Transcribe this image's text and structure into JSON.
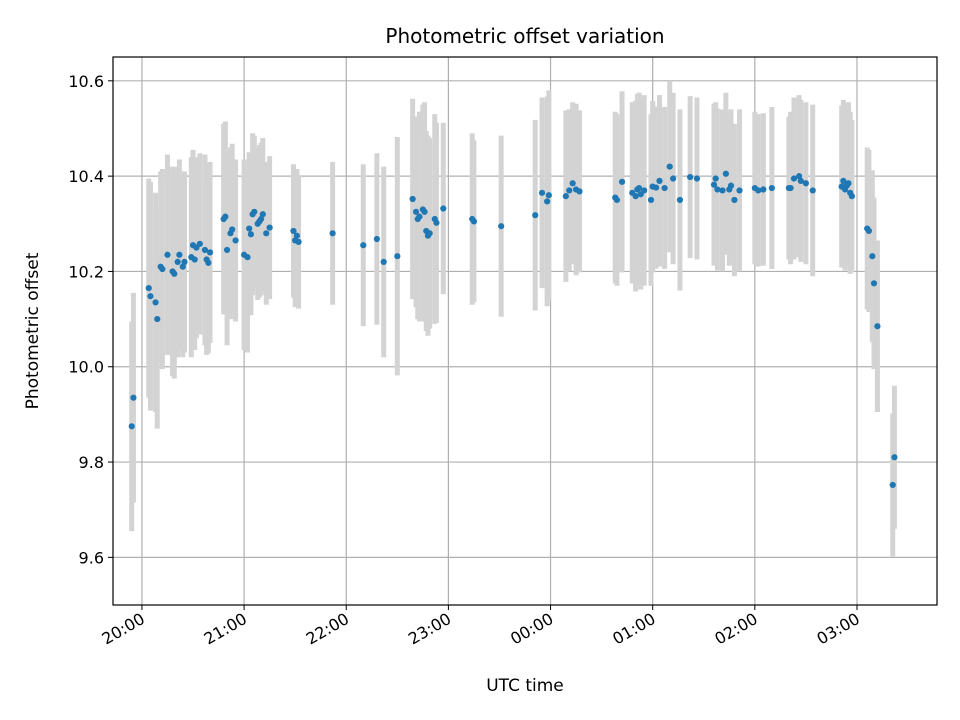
{
  "chart_data": {
    "type": "scatter",
    "title": "Photometric offset variation",
    "xlabel": "UTC time",
    "ylabel": "Photometric offset",
    "ylim": [
      9.5,
      10.65
    ],
    "xlim": [
      "19:43",
      "03:47"
    ],
    "grid": true,
    "x_ticks": [
      "20:00",
      "21:00",
      "22:00",
      "23:00",
      "00:00",
      "01:00",
      "02:00",
      "03:00"
    ],
    "y_ticks": [
      "9.6",
      "9.8",
      "10.0",
      "10.2",
      "10.4",
      "10.6"
    ],
    "colors": {
      "points": "#1f77b4",
      "error_bars": "#d3d3d3",
      "grid": "#b0b0b0"
    },
    "series": [
      {
        "x": [
          "19:54",
          "19:55",
          "20:04",
          "20:05",
          "20:08",
          "20:09",
          "20:11",
          "20:12",
          "20:15",
          "20:18",
          "20:19",
          "20:21",
          "20:22",
          "20:24",
          "20:25",
          "20:29",
          "20:30",
          "20:31",
          "20:32",
          "20:34",
          "20:37",
          "20:38",
          "20:39",
          "20:40",
          "20:48",
          "20:49",
          "20:50",
          "20:52",
          "20:53",
          "20:55",
          "21:00",
          "21:02",
          "21:03",
          "21:04",
          "21:05",
          "21:06",
          "21:08",
          "21:09",
          "21:10",
          "21:11",
          "21:13",
          "21:15",
          "21:29",
          "21:30",
          "21:31",
          "21:32",
          "21:52",
          "22:10",
          "22:18",
          "22:22",
          "22:30",
          "22:39",
          "22:41",
          "22:42",
          "22:43",
          "22:45",
          "22:46",
          "22:47",
          "22:48",
          "22:49",
          "22:52",
          "22:53",
          "22:57",
          "23:14",
          "23:15",
          "23:31",
          "23:51",
          "23:55",
          "23:58",
          "23:59",
          "00:09",
          "00:11",
          "00:13",
          "00:15",
          "00:17",
          "00:38",
          "00:39",
          "00:42",
          "00:48",
          "00:50",
          "00:51",
          "00:52",
          "00:53",
          "00:55",
          "00:59",
          "01:00",
          "01:02",
          "01:04",
          "01:07",
          "01:10",
          "01:12",
          "01:16",
          "01:22",
          "01:26",
          "01:36",
          "01:37",
          "01:38",
          "01:41",
          "01:43",
          "01:45",
          "01:46",
          "01:48",
          "01:51",
          "02:00",
          "02:02",
          "02:05",
          "02:10",
          "02:20",
          "02:21",
          "02:23",
          "02:26",
          "02:27",
          "02:30",
          "02:34",
          "02:51",
          "02:52",
          "02:53",
          "02:54",
          "02:55",
          "02:56",
          "02:57",
          "03:06",
          "03:07",
          "03:09",
          "03:10",
          "03:12",
          "03:21",
          "03:22"
        ],
        "y": [
          9.875,
          9.935,
          10.165,
          10.148,
          10.135,
          10.1,
          10.21,
          10.205,
          10.235,
          10.2,
          10.195,
          10.22,
          10.235,
          10.21,
          10.22,
          10.23,
          10.255,
          10.225,
          10.25,
          10.258,
          10.245,
          10.225,
          10.218,
          10.24,
          10.31,
          10.315,
          10.245,
          10.28,
          10.288,
          10.265,
          10.235,
          10.23,
          10.29,
          10.278,
          10.32,
          10.325,
          10.3,
          10.305,
          10.31,
          10.32,
          10.28,
          10.292,
          10.285,
          10.265,
          10.275,
          10.262,
          10.28,
          10.255,
          10.268,
          10.22,
          10.232,
          10.352,
          10.325,
          10.31,
          10.315,
          10.33,
          10.325,
          10.285,
          10.275,
          10.28,
          10.31,
          10.302,
          10.332,
          10.31,
          10.305,
          10.295,
          10.318,
          10.365,
          10.347,
          10.36,
          10.358,
          10.37,
          10.385,
          10.372,
          10.368,
          10.355,
          10.35,
          10.388,
          10.365,
          10.358,
          10.372,
          10.375,
          10.362,
          10.37,
          10.35,
          10.378,
          10.376,
          10.39,
          10.375,
          10.42,
          10.395,
          10.35,
          10.398,
          10.395,
          10.382,
          10.395,
          10.372,
          10.37,
          10.405,
          10.372,
          10.38,
          10.35,
          10.37,
          10.375,
          10.37,
          10.372,
          10.375,
          10.375,
          10.375,
          10.395,
          10.4,
          10.39,
          10.385,
          10.37,
          10.378,
          10.39,
          10.372,
          10.38,
          10.385,
          10.365,
          10.358,
          10.29,
          10.285,
          10.232,
          10.175,
          10.085,
          9.752,
          9.81
        ],
        "error": [
          0.22,
          0.22,
          0.23,
          0.24,
          0.23,
          0.23,
          0.2,
          0.21,
          0.21,
          0.22,
          0.22,
          0.2,
          0.2,
          0.19,
          0.19,
          0.21,
          0.2,
          0.19,
          0.19,
          0.19,
          0.2,
          0.2,
          0.19,
          0.19,
          0.2,
          0.2,
          0.2,
          0.18,
          0.18,
          0.17,
          0.2,
          0.2,
          0.16,
          0.17,
          0.17,
          0.16,
          0.16,
          0.16,
          0.16,
          0.16,
          0.15,
          0.15,
          0.14,
          0.14,
          0.14,
          0.14,
          0.15,
          0.17,
          0.18,
          0.2,
          0.25,
          0.21,
          0.2,
          0.21,
          0.22,
          0.22,
          0.23,
          0.21,
          0.21,
          0.2,
          0.22,
          0.21,
          0.18,
          0.18,
          0.17,
          0.19,
          0.2,
          0.2,
          0.22,
          0.22,
          0.18,
          0.17,
          0.17,
          0.18,
          0.17,
          0.18,
          0.18,
          0.19,
          0.19,
          0.2,
          0.2,
          0.2,
          0.2,
          0.2,
          0.18,
          0.18,
          0.17,
          0.18,
          0.17,
          0.18,
          0.18,
          0.19,
          0.17,
          0.17,
          0.17,
          0.16,
          0.17,
          0.17,
          0.17,
          0.16,
          0.16,
          0.16,
          0.17,
          0.16,
          0.16,
          0.16,
          0.17,
          0.15,
          0.16,
          0.17,
          0.17,
          0.17,
          0.17,
          0.18,
          0.17,
          0.17,
          0.17,
          0.17,
          0.17,
          0.17,
          0.16,
          0.17,
          0.17,
          0.18,
          0.18,
          0.18,
          0.15,
          0.15
        ]
      }
    ]
  }
}
